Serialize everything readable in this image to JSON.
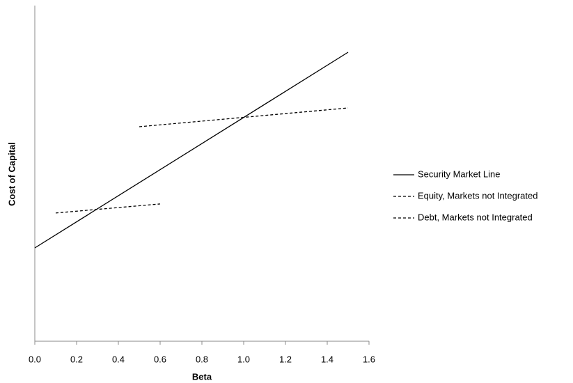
{
  "chart_data": {
    "type": "line",
    "x_label": "Beta",
    "y_label": "Cost of Capital",
    "xlim": [
      0,
      1.6
    ],
    "xticks": [
      {
        "value": 0,
        "label": "0.0"
      },
      0.2,
      0.4,
      0.6,
      0.8,
      {
        "value": 1,
        "label": "1.0"
      },
      1.2,
      1.4,
      1.6
    ],
    "ylim": [
      0,
      1
    ],
    "grid": false,
    "legend": "right",
    "series": [
      {
        "name": "Security Market Line",
        "color": "#000000",
        "style": "solid",
        "x": [
          0,
          1.5
        ],
        "values": [
          0.278,
          0.861
        ]
      },
      {
        "name": "Equity, Markets not Integrated",
        "color": "#000000",
        "style": "dashed",
        "x": [
          0.5,
          1.5
        ],
        "values": [
          0.639,
          0.695
        ]
      },
      {
        "name": "Debt, Markets not Integrated",
        "color": "#000000",
        "style": "dashed",
        "x": [
          0.1,
          0.6
        ],
        "values": [
          0.382,
          0.409
        ]
      }
    ]
  }
}
